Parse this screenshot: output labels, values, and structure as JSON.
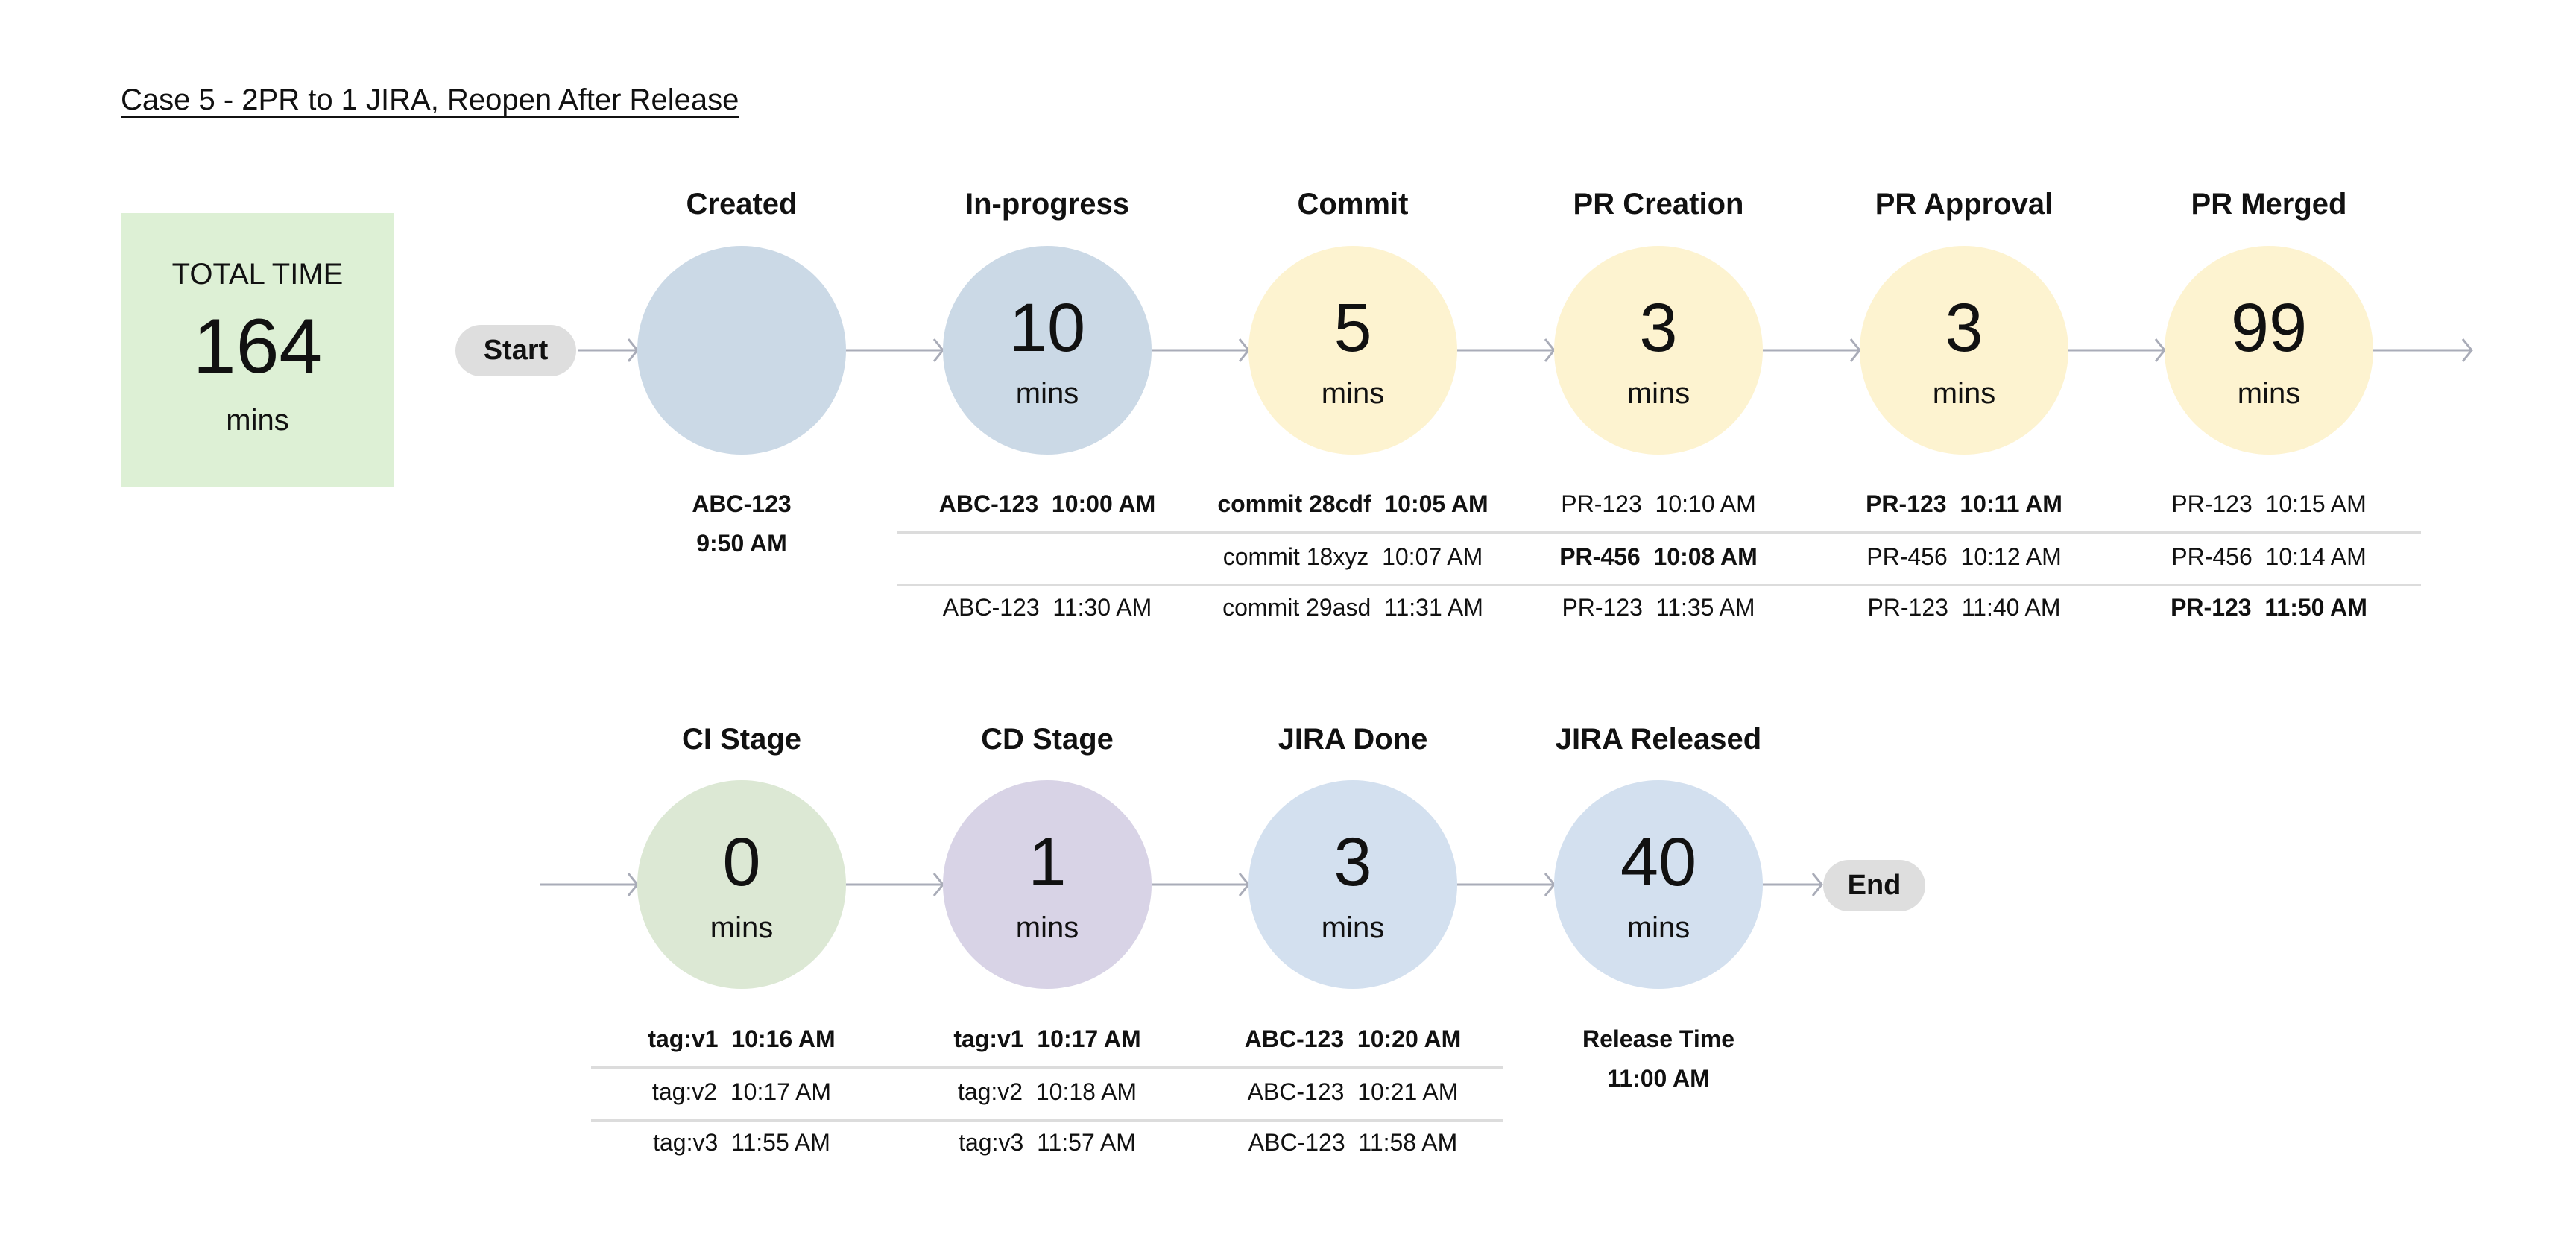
{
  "title": "Case 5 - 2PR to 1 JIRA, Reopen After Release",
  "total": {
    "label": "TOTAL TIME",
    "value": "164",
    "unit": "mins",
    "color": "#ddf0d5"
  },
  "start_label": "Start",
  "end_label": "End",
  "row1": [
    {
      "label": "Created",
      "value": "",
      "unit": "",
      "color": "#cbd9e6",
      "notes": [
        {
          "text": "ABC-123",
          "bold": true
        },
        {
          "text": "9:50 AM",
          "bold": true
        }
      ]
    },
    {
      "label": "In-progress",
      "value": "10",
      "unit": "mins",
      "color": "#cbd9e6",
      "rows": [
        {
          "text": "ABC-123  10:00 AM",
          "bold": true
        },
        {
          "text": "",
          "bold": false
        },
        {
          "text": "ABC-123  11:30 AM",
          "bold": false
        }
      ]
    },
    {
      "label": "Commit",
      "value": "5",
      "unit": "mins",
      "color": "#fdf3d0",
      "rows": [
        {
          "text": "commit 28cdf  10:05 AM",
          "bold": true
        },
        {
          "text": "commit 18xyz  10:07 AM",
          "bold": false
        },
        {
          "text": "commit 29asd  11:31 AM",
          "bold": false
        }
      ]
    },
    {
      "label": "PR Creation",
      "value": "3",
      "unit": "mins",
      "color": "#fdf3d0",
      "rows": [
        {
          "text": "PR-123  10:10 AM",
          "bold": false
        },
        {
          "text": "PR-456  10:08 AM",
          "bold": true
        },
        {
          "text": "PR-123  11:35 AM",
          "bold": false
        }
      ]
    },
    {
      "label": "PR Approval",
      "value": "3",
      "unit": "mins",
      "color": "#fdf3d0",
      "rows": [
        {
          "text": "PR-123  10:11 AM",
          "bold": true
        },
        {
          "text": "PR-456  10:12 AM",
          "bold": false
        },
        {
          "text": "PR-123  11:40 AM",
          "bold": false
        }
      ]
    },
    {
      "label": "PR Merged",
      "value": "99",
      "unit": "mins",
      "color": "#fdf3d0",
      "rows": [
        {
          "text": "PR-123  10:15 AM",
          "bold": false
        },
        {
          "text": "PR-456  10:14 AM",
          "bold": false
        },
        {
          "text": "PR-123  11:50 AM",
          "bold": true
        }
      ]
    }
  ],
  "row2": [
    {
      "label": "CI Stage",
      "value": "0",
      "unit": "mins",
      "color": "#dce8d4",
      "rows": [
        {
          "text": "tag:v1  10:16 AM",
          "bold": true
        },
        {
          "text": "tag:v2  10:17 AM",
          "bold": false
        },
        {
          "text": "tag:v3  11:55 AM",
          "bold": false
        }
      ]
    },
    {
      "label": "CD Stage",
      "value": "1",
      "unit": "mins",
      "color": "#d8d3e6",
      "rows": [
        {
          "text": "tag:v1  10:17 AM",
          "bold": true
        },
        {
          "text": "tag:v2  10:18 AM",
          "bold": false
        },
        {
          "text": "tag:v3  11:57 AM",
          "bold": false
        }
      ]
    },
    {
      "label": "JIRA Done",
      "value": "3",
      "unit": "mins",
      "color": "#d3e0ef",
      "rows": [
        {
          "text": "ABC-123  10:20 AM",
          "bold": true
        },
        {
          "text": "ABC-123  10:21 AM",
          "bold": false
        },
        {
          "text": "ABC-123  11:58 AM",
          "bold": false
        }
      ]
    },
    {
      "label": "JIRA Released",
      "value": "40",
      "unit": "mins",
      "color": "#d3e0ef",
      "notes": [
        {
          "text": "Release Time",
          "bold": true
        },
        {
          "text": "11:00 AM",
          "bold": true
        }
      ]
    }
  ],
  "arrow_color": "#a9acb8"
}
